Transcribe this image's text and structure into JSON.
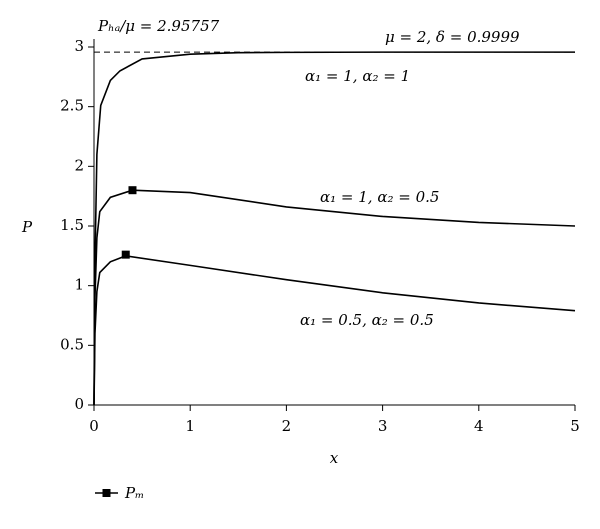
{
  "chart_data": {
    "type": "line",
    "x_label": "x",
    "y_label": "P",
    "xlim": [
      0,
      5
    ],
    "xticks": [
      0,
      1,
      2,
      3,
      4,
      5
    ],
    "ylim": [
      0,
      3
    ],
    "yticks": [
      0,
      0.5,
      1,
      1.5,
      2,
      2.5,
      3
    ],
    "hline": 2.95757,
    "annotations": [
      "Pₕₐ/μ = 2.95757",
      "μ = 2, δ = 0.9999",
      "α₁ = 1, α₂ = 1",
      "α₁ = 1, α₂ = 0.5",
      "α₁ = 0.5, α₂ = 0.5"
    ],
    "series": [
      {
        "color": "#000000",
        "x": [
          0,
          0.01,
          0.03,
          0.07,
          0.17,
          0.27,
          0.5,
          1,
          1.5,
          2,
          3,
          4,
          5
        ],
        "values": [
          0,
          1.2,
          2.1,
          2.51,
          2.72,
          2.8,
          2.9,
          2.94,
          2.952,
          2.955,
          2.957,
          2.957,
          2.957
        ]
      },
      {
        "color": "#000000",
        "x": [
          0,
          0.01,
          0.03,
          0.06,
          0.17,
          0.4,
          1,
          2,
          3,
          4,
          5
        ],
        "values": [
          0,
          0.9,
          1.4,
          1.62,
          1.74,
          1.8,
          1.78,
          1.66,
          1.58,
          1.53,
          1.5
        ]
      },
      {
        "color": "#000000",
        "x": [
          0,
          0.01,
          0.03,
          0.06,
          0.17,
          0.33,
          1,
          2,
          3,
          4,
          5
        ],
        "values": [
          0,
          0.6,
          0.95,
          1.11,
          1.2,
          1.25,
          1.17,
          1.05,
          0.94,
          0.855,
          0.79
        ]
      }
    ],
    "markers": {
      "type": "scatter",
      "name": "Pₘ",
      "color": "#000000",
      "x": [
        0.4,
        0.33
      ],
      "values": [
        1.8,
        1.26
      ]
    }
  }
}
